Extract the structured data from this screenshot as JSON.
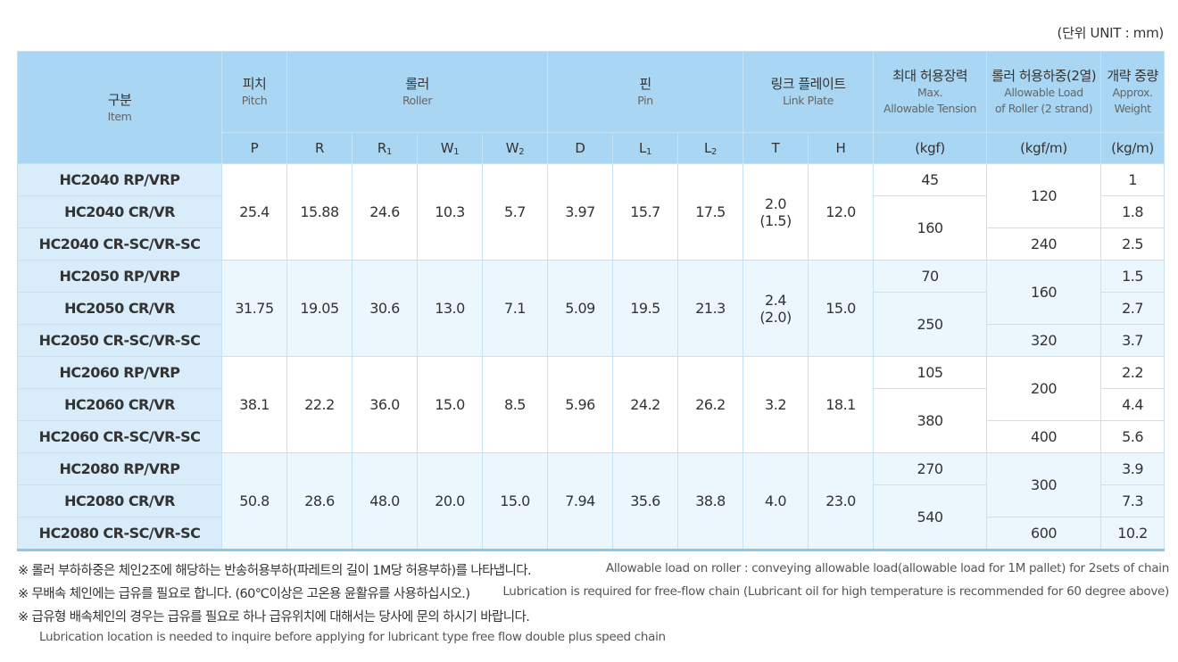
{
  "unit_label": "(단위 UNIT : mm)",
  "header": {
    "item": {
      "ko": "구분",
      "en": "Item"
    },
    "pitch": {
      "ko": "피치",
      "en": "Pitch"
    },
    "roller": {
      "ko": "롤러",
      "en": "Roller"
    },
    "pin": {
      "ko": "핀",
      "en": "Pin"
    },
    "link_plate": {
      "ko": "링크 플레이트",
      "en": "Link Plate"
    },
    "max_tension": {
      "ko": "최대 허용장력",
      "en1": "Max.",
      "en2": "Allowable Tension"
    },
    "roller_load": {
      "ko": "롤러 허용하중(2열)",
      "en1": "Allowable Load",
      "en2": "of Roller (2 strand)"
    },
    "weight": {
      "ko": "개략 중량",
      "en1": "Approx.",
      "en2": "Weight"
    },
    "symbols": {
      "P": "P",
      "R": "R",
      "R1": "R",
      "R1_sub": "1",
      "W1": "W",
      "W1_sub": "1",
      "W2": "W",
      "W2_sub": "2",
      "D": "D",
      "L1": "L",
      "L1_sub": "1",
      "L2": "L",
      "L2_sub": "2",
      "T": "T",
      "H": "H",
      "tension_unit": "(kgf)",
      "load_unit": "(kgf/m)",
      "weight_unit": "(kg/m)"
    }
  },
  "groups": [
    {
      "models": [
        "HC2040 RP/VRP",
        "HC2040 CR/VR",
        "HC2040 CR-SC/VR-SC"
      ],
      "pitch": "25.4",
      "R": "15.88",
      "R1": "24.6",
      "W1": "10.3",
      "W2": "5.7",
      "D": "3.97",
      "L1": "15.7",
      "L2": "17.5",
      "T1": "2.0",
      "T2": "(1.5)",
      "H": "12.0",
      "tension_a": "45",
      "tension_b": "160",
      "load_a": "120",
      "load_b": "240",
      "weights": [
        "1",
        "1.8",
        "2.5"
      ]
    },
    {
      "models": [
        "HC2050 RP/VRP",
        "HC2050 CR/VR",
        "HC2050 CR-SC/VR-SC"
      ],
      "pitch": "31.75",
      "R": "19.05",
      "R1": "30.6",
      "W1": "13.0",
      "W2": "7.1",
      "D": "5.09",
      "L1": "19.5",
      "L2": "21.3",
      "T1": "2.4",
      "T2": "(2.0)",
      "H": "15.0",
      "tension_a": "70",
      "tension_b": "250",
      "load_a": "160",
      "load_b": "320",
      "weights": [
        "1.5",
        "2.7",
        "3.7"
      ]
    },
    {
      "models": [
        "HC2060 RP/VRP",
        "HC2060 CR/VR",
        "HC2060 CR-SC/VR-SC"
      ],
      "pitch": "38.1",
      "R": "22.2",
      "R1": "36.0",
      "W1": "15.0",
      "W2": "8.5",
      "D": "5.96",
      "L1": "24.2",
      "L2": "26.2",
      "T1": "3.2",
      "T2": "",
      "H": "18.1",
      "tension_a": "105",
      "tension_b": "380",
      "load_a": "200",
      "load_b": "400",
      "weights": [
        "2.2",
        "4.4",
        "5.6"
      ]
    },
    {
      "models": [
        "HC2080 RP/VRP",
        "HC2080 CR/VR",
        "HC2080 CR-SC/VR-SC"
      ],
      "pitch": "50.8",
      "R": "28.6",
      "R1": "48.0",
      "W1": "20.0",
      "W2": "15.0",
      "D": "7.94",
      "L1": "35.6",
      "L2": "38.8",
      "T1": "4.0",
      "T2": "",
      "H": "23.0",
      "tension_a": "270",
      "tension_b": "540",
      "load_a": "300",
      "load_b": "600",
      "weights": [
        "3.9",
        "7.3",
        "10.2"
      ]
    }
  ],
  "notes": [
    {
      "ko": "※ 롤러 부하하중은 체인2조에 해당하는 반송허용부하(파레트의 길이 1M당 허용부하)를 나타냅니다.",
      "en": "Allowable load on roller : conveying allowable load(allowable load for 1M pallet) for 2sets of chain"
    },
    {
      "ko": "※ 무배속 체인에는 급유를 필요로 합니다. (60℃이상은 고온용 윤활유를 사용하십시오.)",
      "en": "Lubrication is required for free-flow chain (Lubricant oil for high temperature is recommended for 60 degree above)"
    },
    {
      "ko": "※ 급유형 배속체인의 경우는 급유를 필요로 하나 급유위치에 대해서는 당사에 문의 하시기 바랍니다.",
      "en": "Lubrication location is needed to inquire before applying for lubricant type free flow double plus speed chain"
    }
  ]
}
